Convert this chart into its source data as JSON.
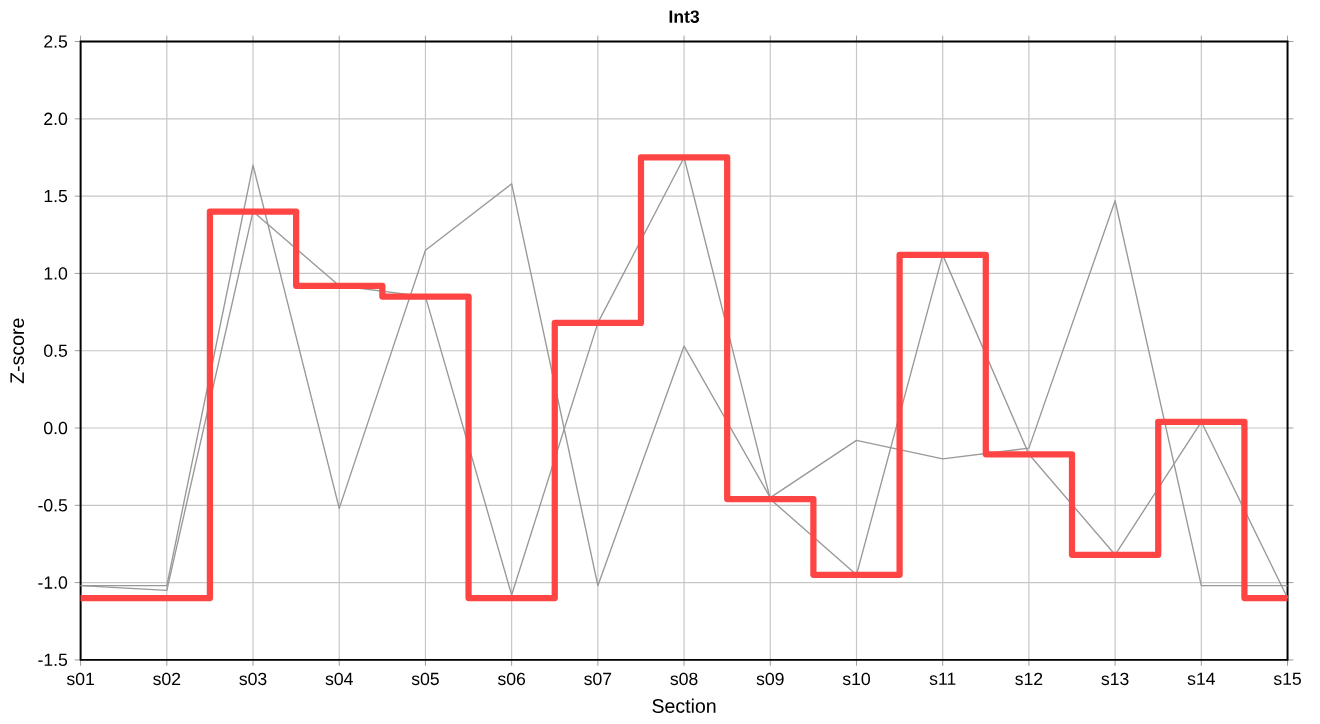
{
  "chart_data": {
    "type": "line",
    "title": "Int3",
    "xlabel": "Section",
    "ylabel": "Z-score",
    "categories": [
      "s01",
      "s02",
      "s03",
      "s04",
      "s05",
      "s06",
      "s07",
      "s08",
      "s09",
      "s10",
      "s11",
      "s12",
      "s13",
      "s14",
      "s15"
    ],
    "series": [
      {
        "color": "#999999",
        "values": [
          -1.02,
          -1.02,
          1.7,
          -0.52,
          1.15,
          1.58,
          -1.02,
          0.53,
          -0.45,
          -0.08,
          -0.2,
          -0.13,
          1.47,
          -1.02,
          -1.02
        ]
      },
      {
        "color": "#999999",
        "values": [
          -1.02,
          -1.05,
          1.4,
          0.92,
          0.85,
          -1.08,
          0.68,
          1.75,
          -0.46,
          -0.95,
          1.12,
          -0.17,
          -0.82,
          0.04,
          -1.1
        ]
      },
      {
        "type": "step",
        "color": "#ff4444",
        "values": [
          -1.1,
          -1.1,
          1.4,
          0.92,
          0.85,
          -1.1,
          0.68,
          1.75,
          -0.46,
          -0.95,
          1.12,
          -0.17,
          -0.82,
          0.04,
          -1.1
        ]
      }
    ],
    "ylim": [
      -1.5,
      2.5
    ],
    "yticks": [
      -1.5,
      {
        "value": -1,
        "label": "-1.0"
      },
      -0.5,
      {
        "value": 0,
        "label": "0.0"
      },
      0.5,
      {
        "value": 1,
        "label": "1.0"
      },
      1.5,
      {
        "value": 2,
        "label": "2.0"
      },
      2.5
    ],
    "grid": true
  }
}
